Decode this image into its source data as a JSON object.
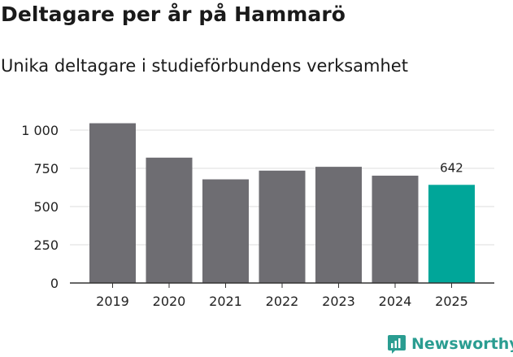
{
  "title": "Deltagare per år på Hammarö",
  "subtitle": "Unika deltagare i studieförbundens verksamhet",
  "brand": {
    "name": "Newsworthy",
    "icon": "newsworthy-logo-icon"
  },
  "colors": {
    "bar": "#6e6d72",
    "highlight": "#00a699",
    "grid": "#dcdcdc",
    "axis": "#333333",
    "brand": "#2a9d91"
  },
  "chart_data": {
    "type": "bar",
    "title": "Deltagare per år på Hammarö",
    "subtitle": "Unika deltagare i studieförbundens verksamhet",
    "categories": [
      "2019",
      "2020",
      "2021",
      "2022",
      "2023",
      "2024",
      "2025"
    ],
    "values": [
      1045,
      820,
      678,
      735,
      760,
      702,
      642
    ],
    "highlight_index": 6,
    "data_labels": [
      {
        "index": 6,
        "text": "642"
      }
    ],
    "ylim": [
      0,
      1000
    ],
    "yticks": [
      0,
      250,
      500,
      750,
      1000
    ],
    "ytick_labels": [
      "0",
      "250",
      "500",
      "750",
      "1 000"
    ],
    "xlabel": "",
    "ylabel": "",
    "grid": true
  }
}
